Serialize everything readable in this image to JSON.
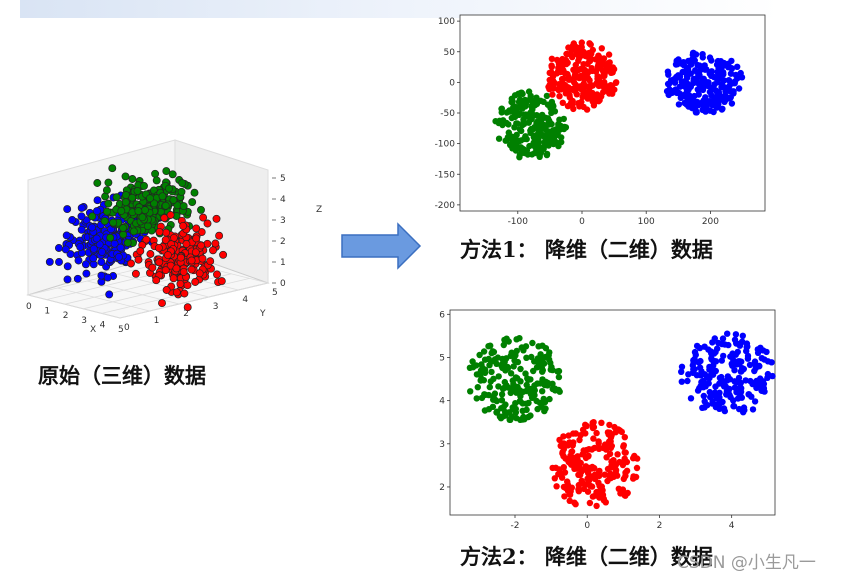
{
  "captions": {
    "original": "原始（三维）数据",
    "method1": "方法1：  降维（二维）数据",
    "method2": "方法2：  降维（二维）数据"
  },
  "watermark": "CSDN @小生凡一",
  "colors": {
    "red": "#ff0000",
    "green": "#008000",
    "blue": "#0000ff",
    "arrow": "#6a9ae0"
  },
  "chart_data": [
    {
      "type": "scatter",
      "title": "",
      "axes": {
        "x": "X",
        "y": "Y",
        "z": "Z"
      },
      "x_ticks": [
        "0",
        "1",
        "2",
        "3",
        "4",
        "5"
      ],
      "y_ticks": [
        "0",
        "1",
        "2",
        "3",
        "4",
        "5"
      ],
      "z_ticks": [
        "0",
        "1",
        "2",
        "3",
        "4",
        "5"
      ],
      "series": [
        {
          "color": "blue",
          "center": [
            1.0,
            2.0,
            2.0
          ]
        },
        {
          "color": "green",
          "center": [
            2.5,
            2.5,
            3.5
          ]
        },
        {
          "color": "red",
          "center": [
            3.5,
            3.0,
            1.5
          ]
        }
      ]
    },
    {
      "type": "scatter",
      "xlim": [
        -190,
        285
      ],
      "ylim": [
        -210,
        110
      ],
      "x_ticks": [
        "-100",
        "0",
        "100",
        "200"
      ],
      "y_ticks": [
        "100",
        "50",
        "0",
        "-50",
        "-100",
        "-150",
        "-200"
      ],
      "series": [
        {
          "color": "green",
          "center": [
            -80,
            -70
          ],
          "spread": [
            55,
            55
          ]
        },
        {
          "color": "red",
          "center": [
            0,
            10
          ],
          "spread": [
            55,
            55
          ]
        },
        {
          "color": "blue",
          "center": [
            190,
            0
          ],
          "spread": [
            60,
            50
          ]
        }
      ]
    },
    {
      "type": "scatter",
      "xlim": [
        -3.8,
        5.2
      ],
      "ylim": [
        1.35,
        6.1
      ],
      "x_ticks": [
        "-2",
        "0",
        "2",
        "4"
      ],
      "y_ticks": [
        "6",
        "5",
        "4",
        "3",
        "2"
      ],
      "series": [
        {
          "color": "green",
          "center": [
            -2.0,
            4.5
          ],
          "spread": [
            1.3,
            0.95
          ]
        },
        {
          "color": "red",
          "center": [
            0.2,
            2.5
          ],
          "spread": [
            1.2,
            1.0
          ]
        },
        {
          "color": "blue",
          "center": [
            3.9,
            4.6
          ],
          "spread": [
            1.3,
            0.95
          ]
        }
      ]
    }
  ]
}
